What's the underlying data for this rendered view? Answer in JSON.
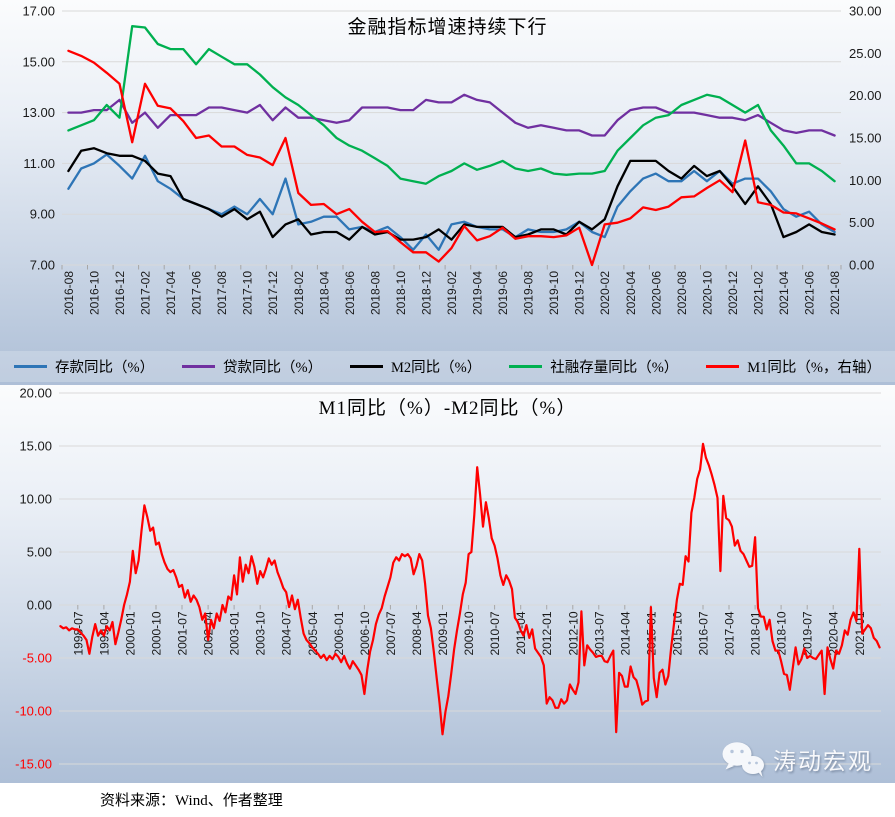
{
  "footer": {
    "source": "资料来源：Wind、作者整理"
  },
  "watermark": {
    "text": "涛动宏观",
    "icon": "wechat-icon"
  },
  "chart_data": [
    {
      "type": "line",
      "title": "金融指标增速持续下行",
      "grid": "horizontal",
      "legend_position": "bottom",
      "background": "gradient-white-to-steelblue",
      "x_start": "2016-08",
      "x_frequency": "monthly",
      "x_tick_labels": [
        "2016-08",
        "2016-10",
        "2016-12",
        "2017-02",
        "2017-04",
        "2017-06",
        "2017-08",
        "2017-10",
        "2017-12",
        "2018-02",
        "2018-04",
        "2018-06",
        "2018-08",
        "2018-10",
        "2018-12",
        "2019-02",
        "2019-04",
        "2019-06",
        "2019-08",
        "2019-10",
        "2019-12",
        "2020-02",
        "2020-04",
        "2020-06",
        "2020-08",
        "2020-10",
        "2020-12",
        "2021-02",
        "2021-04",
        "2021-06",
        "2021-08"
      ],
      "left_axis": {
        "min": 7,
        "max": 17,
        "step": 2,
        "tick_labels": [
          "17.00",
          "15.00",
          "13.00",
          "11.00",
          "9.00",
          "7.00"
        ],
        "tick_values": [
          17,
          15,
          13,
          11,
          9,
          7
        ]
      },
      "right_axis": {
        "min": 0,
        "max": 30,
        "step": 5,
        "tick_labels": [
          "30.00",
          "25.00",
          "20.00",
          "15.00",
          "10.00",
          "5.00",
          "0.00"
        ],
        "tick_values": [
          30,
          25,
          20,
          15,
          10,
          5,
          0
        ]
      },
      "series": [
        {
          "id": "deposits-yoy",
          "name": "存款同比（%）",
          "color": "#2E75B6",
          "axis": "left",
          "values": [
            10.0,
            10.8,
            11.0,
            11.35,
            10.9,
            10.4,
            11.3,
            10.3,
            10.0,
            9.6,
            9.4,
            9.2,
            9.0,
            9.3,
            9.0,
            9.6,
            9.0,
            10.4,
            8.6,
            8.7,
            8.9,
            8.9,
            8.4,
            8.5,
            8.3,
            8.5,
            8.1,
            7.6,
            8.2,
            7.6,
            8.6,
            8.7,
            8.5,
            8.4,
            8.4,
            8.1,
            8.4,
            8.3,
            8.3,
            8.4,
            8.7,
            8.3,
            8.1,
            9.3,
            9.9,
            10.4,
            10.6,
            10.3,
            10.3,
            10.7,
            10.3,
            10.7,
            10.2,
            10.4,
            10.4,
            9.9,
            9.2,
            8.9,
            9.1,
            8.6,
            8.3
          ]
        },
        {
          "id": "loans-yoy",
          "name": "贷款同比（%）",
          "color": "#7030A0",
          "axis": "left",
          "values": [
            13.0,
            13.0,
            13.1,
            13.1,
            13.5,
            12.6,
            13.0,
            12.4,
            12.9,
            12.9,
            12.9,
            13.2,
            13.2,
            13.1,
            13.0,
            13.3,
            12.7,
            13.2,
            12.8,
            12.8,
            12.7,
            12.6,
            12.7,
            13.2,
            13.2,
            13.2,
            13.1,
            13.1,
            13.5,
            13.4,
            13.4,
            13.7,
            13.5,
            13.4,
            13.0,
            12.6,
            12.4,
            12.5,
            12.4,
            12.3,
            12.3,
            12.1,
            12.1,
            12.7,
            13.1,
            13.2,
            13.2,
            13.0,
            13.0,
            13.0,
            12.9,
            12.8,
            12.8,
            12.7,
            12.9,
            12.6,
            12.3,
            12.2,
            12.3,
            12.3,
            12.1
          ]
        },
        {
          "id": "m2-yoy",
          "name": "M2同比（%）",
          "color": "#000000",
          "axis": "left",
          "values": [
            10.7,
            11.5,
            11.6,
            11.4,
            11.3,
            11.3,
            11.1,
            10.6,
            10.5,
            9.6,
            9.4,
            9.2,
            8.9,
            9.2,
            8.8,
            9.1,
            8.1,
            8.6,
            8.8,
            8.2,
            8.3,
            8.3,
            8.0,
            8.5,
            8.2,
            8.3,
            8.0,
            8.0,
            8.1,
            8.4,
            8.0,
            8.6,
            8.5,
            8.5,
            8.5,
            8.1,
            8.2,
            8.4,
            8.4,
            8.2,
            8.7,
            8.4,
            8.8,
            10.1,
            11.1,
            11.1,
            11.1,
            10.7,
            10.4,
            10.9,
            10.5,
            10.7,
            10.1,
            9.4,
            10.1,
            9.4,
            8.1,
            8.3,
            8.6,
            8.3,
            8.2
          ]
        },
        {
          "id": "tsf-stock-yoy",
          "name": "社融存量同比（%）",
          "color": "#00B050",
          "axis": "left",
          "values": [
            12.3,
            12.5,
            12.7,
            13.3,
            12.8,
            16.4,
            16.35,
            15.7,
            15.5,
            15.5,
            14.9,
            15.5,
            15.2,
            14.9,
            14.9,
            14.5,
            14.0,
            13.6,
            13.3,
            12.9,
            12.5,
            12.0,
            11.7,
            11.5,
            11.2,
            10.9,
            10.4,
            10.3,
            10.2,
            10.5,
            10.7,
            11.0,
            10.75,
            10.9,
            11.1,
            10.8,
            10.7,
            10.8,
            10.6,
            10.55,
            10.6,
            10.6,
            10.7,
            11.5,
            12.0,
            12.5,
            12.8,
            12.9,
            13.3,
            13.5,
            13.7,
            13.6,
            13.3,
            13.0,
            13.3,
            12.3,
            11.7,
            11.0,
            11.0,
            10.7,
            10.3
          ]
        },
        {
          "id": "m1-yoy",
          "name": "M1同比（%，右轴）",
          "color": "#FF0000",
          "axis": "right",
          "values": [
            25.3,
            24.7,
            23.9,
            22.7,
            21.4,
            14.5,
            21.4,
            18.8,
            18.5,
            17.0,
            15.0,
            15.3,
            14.0,
            14.0,
            13.0,
            12.7,
            11.8,
            15.0,
            8.5,
            7.1,
            7.2,
            6.0,
            6.6,
            5.1,
            3.9,
            4.0,
            2.7,
            1.5,
            1.5,
            0.4,
            2.0,
            4.6,
            2.9,
            3.4,
            4.4,
            3.1,
            3.4,
            3.4,
            3.3,
            3.5,
            4.4,
            0.0,
            4.8,
            5.0,
            5.5,
            6.8,
            6.5,
            6.9,
            8.0,
            8.1,
            9.1,
            10.0,
            8.6,
            14.7,
            7.4,
            7.1,
            6.2,
            6.1,
            5.5,
            4.9,
            4.2
          ]
        }
      ]
    },
    {
      "type": "line",
      "title": "M1同比（%）-M2同比（%）",
      "grid": "horizontal",
      "background": "gradient-white-to-steelblue",
      "x_start": "1998-01",
      "x_frequency": "monthly",
      "x_tick_labels": [
        "1998-07",
        "1999-04",
        "2000-01",
        "2000-10",
        "2001-07",
        "2002-04",
        "2003-01",
        "2003-10",
        "2004-07",
        "2005-04",
        "2006-01",
        "2006-10",
        "2007-07",
        "2008-04",
        "2009-01",
        "2009-10",
        "2010-07",
        "2011-04",
        "2012-01",
        "2012-10",
        "2013-07",
        "2014-04",
        "2015-01",
        "2015-10",
        "2016-07",
        "2017-04",
        "2018-01",
        "2018-10",
        "2019-07",
        "2020-04",
        "2021-01"
      ],
      "x_tick_start_index": 6,
      "x_tick_interval": 9,
      "y_axis": {
        "min": -15,
        "max": 20,
        "step": 5,
        "tick_labels": [
          "20.00",
          "15.00",
          "10.00",
          "5.00",
          "0.00",
          "-5.00",
          "-10.00",
          "-15.00"
        ],
        "tick_values": [
          20,
          15,
          10,
          5,
          0,
          -5,
          -10,
          -15
        ],
        "negative_label_color": "#FF0000"
      },
      "series": [
        {
          "id": "m1-minus-m2",
          "name": "M1同比-M2同比",
          "color": "#FF0000",
          "values": [
            -2.0,
            -2.2,
            -2.1,
            -2.4,
            -2.2,
            -2.3,
            -2.3,
            -2.6,
            -2.9,
            -3.3,
            -4.6,
            -3.0,
            -1.8,
            -2.9,
            -2.4,
            -2.9,
            -2.0,
            -2.4,
            -1.6,
            -3.7,
            -2.6,
            -1.4,
            0.0,
            1.0,
            2.2,
            5.1,
            3.0,
            4.2,
            7.0,
            9.4,
            8.3,
            7.0,
            7.3,
            5.7,
            5.9,
            4.8,
            4.0,
            3.4,
            3.1,
            3.3,
            2.6,
            1.7,
            1.9,
            0.7,
            1.4,
            0.3,
            0.9,
            0.5,
            -0.2,
            -1.4,
            -0.8,
            -3.3,
            -1.4,
            -2.2,
            -0.8,
            -1.5,
            0.0,
            -0.7,
            0.8,
            0.5,
            2.8,
            1.0,
            4.5,
            2.2,
            3.8,
            3.0,
            4.6,
            3.6,
            2.0,
            3.2,
            2.6,
            3.4,
            4.4,
            3.8,
            4.2,
            3.1,
            2.4,
            1.6,
            1.2,
            -0.2,
            0.9,
            -0.4,
            0.5,
            -1.2,
            -2.7,
            -3.3,
            -3.6,
            -4.0,
            -4.3,
            -4.6,
            -5.0,
            -4.7,
            -5.2,
            -4.8,
            -5.1,
            -4.6,
            -4.9,
            -5.4,
            -4.8,
            -5.5,
            -6.0,
            -5.3,
            -5.7,
            -6.1,
            -6.6,
            -8.4,
            -6.1,
            -4.4,
            -3.3,
            -1.8,
            -0.9,
            -0.3,
            0.8,
            1.7,
            2.6,
            4.0,
            4.5,
            4.2,
            4.8,
            4.6,
            4.8,
            4.4,
            2.9,
            3.7,
            4.8,
            4.2,
            2.0,
            -1.0,
            -2.2,
            -4.4,
            -6.9,
            -9.3,
            -12.2,
            -10.1,
            -8.6,
            -6.5,
            -4.2,
            -2.4,
            -0.8,
            1.0,
            2.1,
            4.8,
            5.0,
            8.5,
            13.0,
            10.4,
            7.4,
            9.7,
            8.2,
            6.3,
            5.6,
            4.4,
            2.8,
            1.9,
            2.8,
            2.3,
            1.5,
            -1.2,
            -1.6,
            -2.4,
            -2.9,
            -1.9,
            -3.1,
            -2.3,
            -4.1,
            -4.5,
            -4.9,
            -5.7,
            -9.3,
            -8.7,
            -9.0,
            -9.7,
            -9.7,
            -8.9,
            -9.3,
            -9.0,
            -7.5,
            -8.0,
            -8.4,
            -7.3,
            -0.6,
            -5.7,
            -3.8,
            -4.2,
            -4.5,
            -4.9,
            -4.8,
            -4.8,
            -5.3,
            -5.4,
            -4.8,
            -4.3,
            -12.0,
            -6.4,
            -6.7,
            -7.7,
            -7.7,
            -5.8,
            -6.8,
            -7.1,
            -8.1,
            -9.4,
            -9.1,
            -9.0,
            -0.2,
            -6.9,
            -8.7,
            -6.4,
            -6.1,
            -7.5,
            -6.7,
            -4.0,
            -1.7,
            0.5,
            2.0,
            1.9,
            4.6,
            4.1,
            8.7,
            10.1,
            11.9,
            12.8,
            15.2,
            13.9,
            13.2,
            12.3,
            11.3,
            10.1,
            3.2,
            10.3,
            8.2,
            8.0,
            7.4,
            5.6,
            6.1,
            5.1,
            4.8,
            4.2,
            3.6,
            3.7,
            6.4,
            -0.3,
            -1.1,
            -1.1,
            -2.3,
            -1.4,
            -3.4,
            -4.3,
            -4.3,
            -5.3,
            -6.5,
            -6.6,
            -8.0,
            -6.0,
            -4.0,
            -5.6,
            -5.1,
            -4.1,
            -5.0,
            -4.8,
            -5.0,
            -5.1,
            -4.7,
            -4.3,
            -8.4,
            -4.0,
            -5.1,
            -6.0,
            -4.3,
            -4.6,
            -3.8,
            -2.4,
            -2.8,
            -1.4,
            -0.7,
            -1.5,
            5.3,
            -2.7,
            -2.3,
            -1.9,
            -2.2,
            -3.1,
            -3.4,
            -4.0
          ]
        }
      ]
    }
  ]
}
